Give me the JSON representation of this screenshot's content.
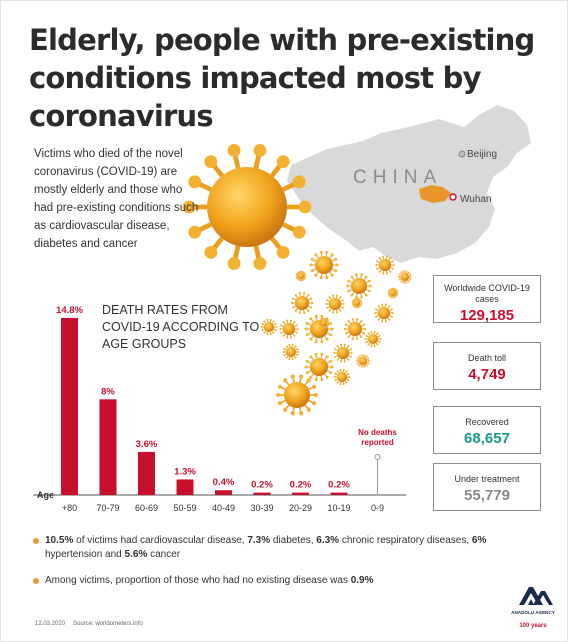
{
  "title": "Elderly, people with pre-existing conditions impacted most by coronavirus",
  "intro": "Victims who died of the novel coronavirus (COVID-19) are mostly elderly and those who had pre-existing conditions such as cardiovascular disease, diabetes and cancer",
  "map": {
    "country": "CHINA",
    "beijing": "Beijing",
    "wuhan": "Wuhan",
    "land_color": "#d9d9d9",
    "hubei_color": "#e8962a"
  },
  "stats": [
    {
      "label": "Worldwide COVID-19 cases",
      "value": "129,185",
      "color": "#c8102e"
    },
    {
      "label": "Death toll",
      "value": "4,749",
      "color": "#c8102e"
    },
    {
      "label": "Recovered",
      "value": "68,657",
      "color": "#1a9a8e"
    },
    {
      "label": "Under treatment",
      "value": "55,779",
      "color": "#8a8a8a"
    }
  ],
  "notes": [
    {
      "parts": [
        {
          "t": "10.5%",
          "b": true
        },
        {
          "t": " of victims had cardiovascular disease, ",
          "b": false
        },
        {
          "t": "7.3%",
          "b": true
        },
        {
          "t": " diabetes, ",
          "b": false
        },
        {
          "t": "6.3%",
          "b": true
        },
        {
          "t": " chronic respiratory diseases, ",
          "b": false
        },
        {
          "t": "6%",
          "b": true
        },
        {
          "t": " hypertension and ",
          "b": false
        },
        {
          "t": "5.6%",
          "b": true
        },
        {
          "t": " cancer",
          "b": false
        }
      ]
    },
    {
      "parts": [
        {
          "t": "Among victims, proportion of those who had no existing disease was ",
          "b": false
        },
        {
          "t": "0.9%",
          "b": true
        }
      ]
    }
  ],
  "footer": {
    "date": "12.03.2020",
    "source": "Source: worldometers.info"
  },
  "logo": {
    "agency": "ANADOLU AGENCY",
    "anniversary": "100 years"
  },
  "chart_data": {
    "type": "bar",
    "title": "DEATH RATES FROM COVID-19 ACCORDING TO AGE GROUPS",
    "xlabel": "Age",
    "ylabel": "",
    "categories": [
      "+80",
      "70-79",
      "60-69",
      "50-59",
      "40-49",
      "30-39",
      "20-29",
      "10-19",
      "0-9"
    ],
    "values": [
      14.8,
      8,
      3.6,
      1.3,
      0.4,
      0.2,
      0.2,
      0.2,
      null
    ],
    "data_labels": [
      "14.8%",
      "8%",
      "3.6%",
      "1.3%",
      "0.4%",
      "0.2%",
      "0.2%",
      "0.2%",
      ""
    ],
    "annotation": "No deaths reported",
    "ylim": [
      0,
      14.8
    ],
    "grid": false,
    "bar_color": "#c8102e"
  }
}
